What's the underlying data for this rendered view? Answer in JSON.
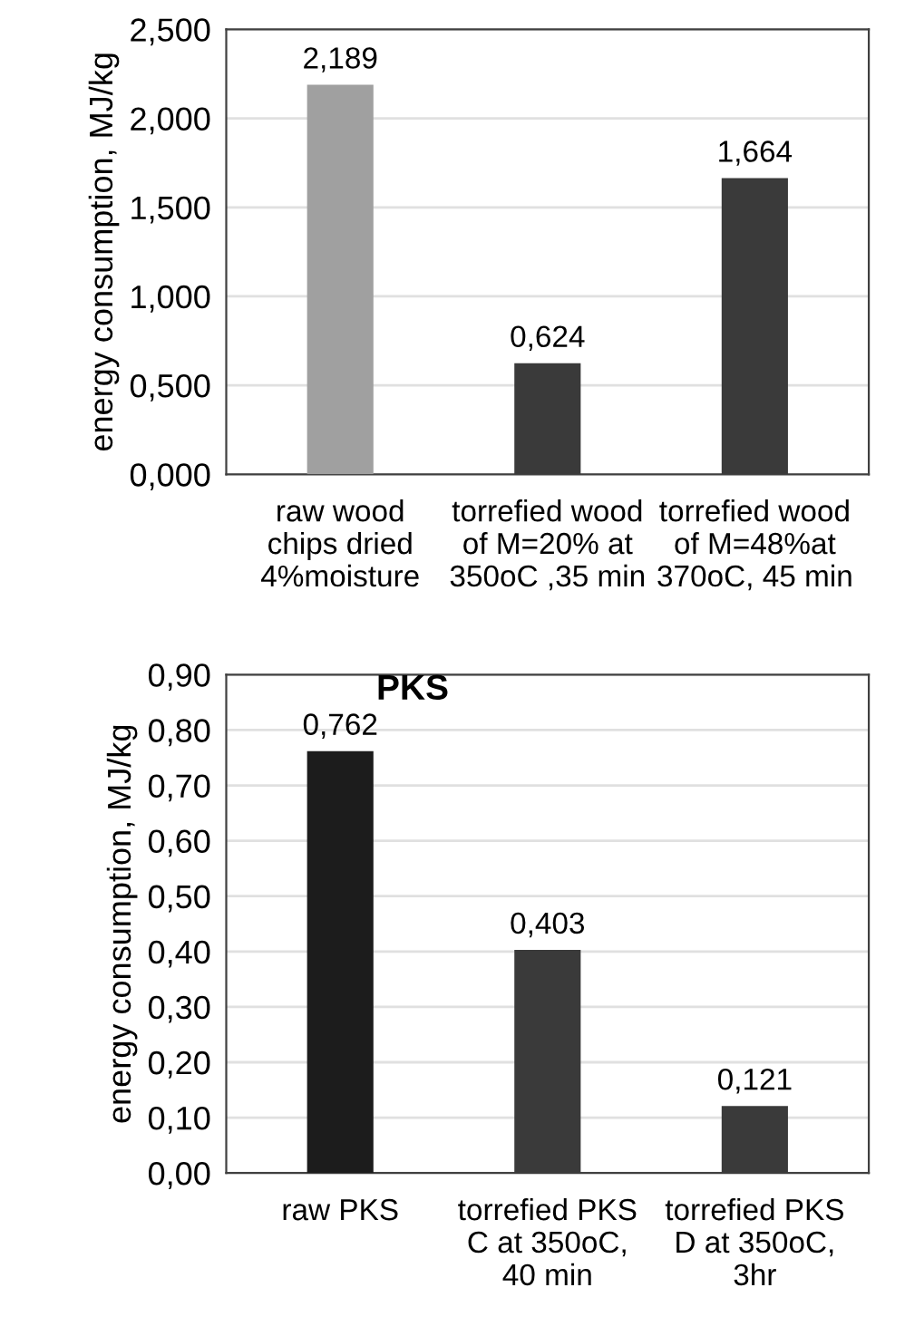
{
  "chart_data": [
    {
      "type": "bar",
      "ylabel": "energy consumption, MJ/kg",
      "categories": [
        "raw wood\nchips dried\n4%moisture",
        "torrefied wood\nof M=20% at\n350oC ,35 min",
        "torrefied wood\nof M=48%at\n370oC, 45 min"
      ],
      "values": [
        2.189,
        0.624,
        1.664
      ],
      "colors": [
        "#a0a0a0",
        "#3a3a3a",
        "#3a3a3a"
      ],
      "value_labels": [
        "2,189",
        "0,624",
        "1,664"
      ],
      "ylim": [
        0,
        2.5
      ],
      "yticks": [
        {
          "value": 0,
          "label": "0,000"
        },
        {
          "value": 0.5,
          "label": "0,500"
        },
        {
          "value": 1.0,
          "label": "1,000"
        },
        {
          "value": 1.5,
          "label": "1,500"
        },
        {
          "value": 2.0,
          "label": "2,000"
        },
        {
          "value": 2.5,
          "label": "2,500"
        }
      ],
      "grid": "y"
    },
    {
      "type": "bar",
      "title": "PKS",
      "ylabel": "energy consumption, MJ/kg",
      "categories": [
        "raw PKS",
        "torrefied PKS\nC at 350oC,\n40 min",
        "torrefied PKS\nD at 350oC,\n3hr"
      ],
      "values": [
        0.762,
        0.403,
        0.121
      ],
      "colors": [
        "#1c1c1c",
        "#3a3a3a",
        "#3a3a3a"
      ],
      "value_labels": [
        "0,762",
        "0,403",
        "0,121"
      ],
      "ylim": [
        0,
        0.9
      ],
      "yticks": [
        {
          "value": 0,
          "label": "0,00"
        },
        {
          "value": 0.1,
          "label": "0,10"
        },
        {
          "value": 0.2,
          "label": "0,20"
        },
        {
          "value": 0.3,
          "label": "0,30"
        },
        {
          "value": 0.4,
          "label": "0,40"
        },
        {
          "value": 0.5,
          "label": "0,50"
        },
        {
          "value": 0.6,
          "label": "0,60"
        },
        {
          "value": 0.7,
          "label": "0,70"
        },
        {
          "value": 0.8,
          "label": "0,80"
        },
        {
          "value": 0.9,
          "label": "0,90"
        }
      ],
      "grid": "y"
    }
  ]
}
